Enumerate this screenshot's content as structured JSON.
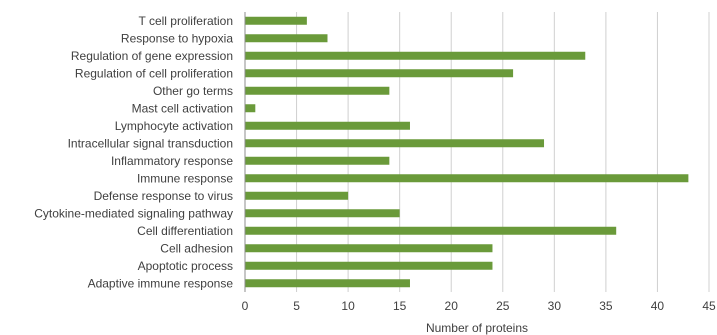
{
  "chart_data": {
    "type": "bar",
    "orientation": "horizontal",
    "categories": [
      "T cell proliferation",
      "Response to hypoxia",
      "Regulation of gene expression",
      "Regulation of cell proliferation",
      "Other go terms",
      "Mast cell activation",
      "Lymphocyte activation",
      "Intracellular signal transduction",
      "Inflammatory response",
      "Immune response",
      "Defense response to virus",
      "Cytokine-mediated signaling pathway",
      "Cell differentiation",
      "Cell adhesion",
      "Apoptotic process",
      "Adaptive immune response"
    ],
    "values": [
      6,
      8,
      33,
      26,
      14,
      1,
      16,
      29,
      14,
      43,
      10,
      15,
      36,
      24,
      24,
      16
    ],
    "xlabel": "Number of proteins",
    "xlim": [
      0,
      45
    ],
    "xticks": [
      "0",
      "5",
      "10",
      "15",
      "20",
      "25",
      "30",
      "35",
      "40",
      "45"
    ],
    "grid": "vertical",
    "bar_color": "#6a9a3a"
  }
}
